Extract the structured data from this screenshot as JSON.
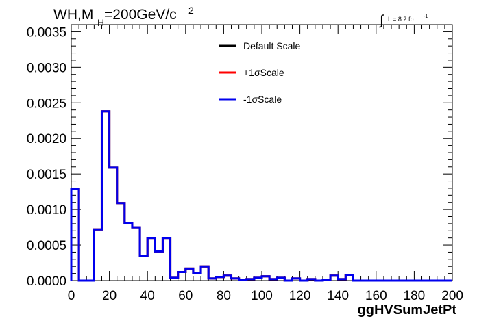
{
  "chart_data": {
    "type": "line",
    "title_text": "WH,M",
    "title_sub": "H",
    "title_rest": "=200GeV/c",
    "title_sup": "2",
    "lumi_text": "L = 8.2 fb",
    "lumi_sup": "-1",
    "xlabel": "ggHVSumJetPt",
    "ylabel": "",
    "xlim": [
      0,
      200
    ],
    "ylim": [
      0,
      0.0036
    ],
    "x_ticks": [
      0,
      20,
      40,
      60,
      80,
      100,
      120,
      140,
      160,
      180,
      200
    ],
    "x_tick_labels": [
      "0",
      "20",
      "40",
      "60",
      "80",
      "100",
      "120",
      "140",
      "160",
      "180",
      "200"
    ],
    "y_ticks": [
      0,
      0.0005,
      0.001,
      0.0015,
      0.002,
      0.0025,
      0.003,
      0.0035
    ],
    "y_tick_labels": [
      "0.0000",
      "0.0005",
      "0.0010",
      "0.0015",
      "0.0020",
      "0.0025",
      "0.0030",
      "0.0035"
    ],
    "legend_position": "top-right",
    "bin_edges": [
      0,
      4,
      8,
      12,
      16,
      20,
      24,
      28,
      32,
      36,
      40,
      44,
      48,
      52,
      56,
      60,
      64,
      68,
      72,
      76,
      80,
      84,
      88,
      92,
      96,
      100,
      104,
      108,
      112,
      116,
      120,
      124,
      128,
      132,
      136,
      140,
      144,
      148,
      152,
      156,
      160,
      164,
      168,
      172,
      176,
      180,
      184,
      188,
      192,
      196,
      200
    ],
    "series": [
      {
        "name": "Default Scale",
        "color": "#000000",
        "values": [
          0.00129,
          0,
          0,
          0.00072,
          0.00238,
          0.00159,
          0.00109,
          0.00081,
          0.00075,
          0.00035,
          0.0006,
          0.00041,
          0.0006,
          4e-05,
          0.00012,
          0.00017,
          0.00011,
          0.0002,
          3e-05,
          5e-05,
          7e-05,
          3e-05,
          1e-05,
          2e-05,
          4e-05,
          6e-05,
          2e-05,
          4e-05,
          0,
          3e-05,
          0,
          2e-05,
          0,
          1e-05,
          7e-05,
          2e-05,
          8e-05,
          0,
          0,
          0,
          0,
          0,
          0,
          0,
          0,
          0,
          0,
          0,
          0,
          0
        ]
      },
      {
        "name": "+1σScale",
        "color": "#ff0000",
        "values": [
          0.00129,
          0,
          0,
          0.00072,
          0.00238,
          0.00159,
          0.00109,
          0.00081,
          0.00075,
          0.00035,
          0.0006,
          0.00041,
          0.0006,
          4e-05,
          0.00012,
          0.00017,
          0.00011,
          0.0002,
          3e-05,
          5e-05,
          7e-05,
          3e-05,
          1e-05,
          2e-05,
          4e-05,
          6e-05,
          2e-05,
          4e-05,
          0,
          3e-05,
          0,
          2e-05,
          0,
          1e-05,
          7e-05,
          2e-05,
          8e-05,
          0,
          0,
          0,
          0,
          0,
          0,
          0,
          0,
          0,
          0,
          0,
          0,
          0
        ]
      },
      {
        "name": "-1σScale",
        "color": "#0000ee",
        "values": [
          0.00129,
          0,
          0,
          0.00072,
          0.00238,
          0.00159,
          0.00109,
          0.00081,
          0.00075,
          0.00035,
          0.0006,
          0.00041,
          0.0006,
          4e-05,
          0.00012,
          0.00017,
          0.00011,
          0.0002,
          3e-05,
          5e-05,
          7e-05,
          3e-05,
          1e-05,
          2e-05,
          4e-05,
          6e-05,
          2e-05,
          4e-05,
          0,
          3e-05,
          0,
          2e-05,
          0,
          1e-05,
          7e-05,
          2e-05,
          8e-05,
          0,
          0,
          0,
          0,
          0,
          0,
          0,
          0,
          0,
          0,
          0,
          0,
          0
        ]
      }
    ]
  }
}
